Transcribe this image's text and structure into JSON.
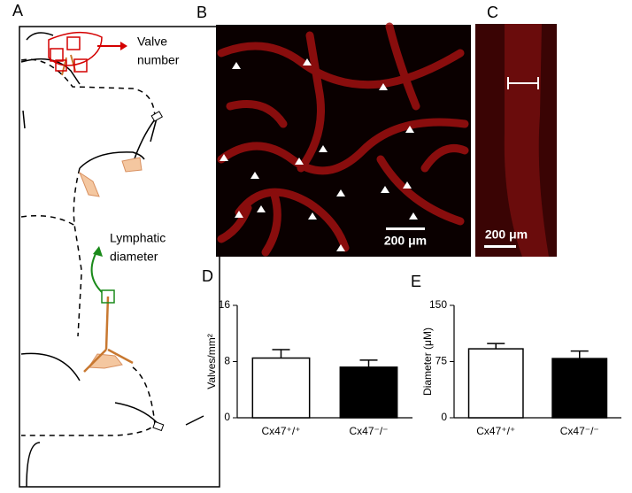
{
  "panels": {
    "a": {
      "label": "A",
      "valve_text": [
        "Valve",
        "number"
      ],
      "diameter_text": [
        "Lymphatic",
        "diameter"
      ]
    },
    "b": {
      "label": "B",
      "scale_bar": "200 μm"
    },
    "c": {
      "label": "C",
      "scale_bar": "200 μm"
    },
    "d": {
      "label": "D"
    },
    "e": {
      "label": "E"
    }
  },
  "chart_data": [
    {
      "type": "bar",
      "ylabel": "Valves/mm²",
      "categories": [
        "Cx47⁺/⁺",
        "Cx47⁻/⁻"
      ],
      "values": [
        8.5,
        7.2
      ],
      "errors": [
        1.2,
        1.0
      ],
      "colors": [
        "#ffffff",
        "#000000"
      ],
      "ylim": [
        0,
        16
      ],
      "yticks": [
        0,
        8,
        16
      ]
    },
    {
      "type": "bar",
      "ylabel": "Diameter (μM)",
      "categories": [
        "Cx47⁺/⁺",
        "Cx47⁻/⁻"
      ],
      "values": [
        92,
        79
      ],
      "errors": [
        7,
        10
      ],
      "colors": [
        "#ffffff",
        "#000000"
      ],
      "ylim": [
        0,
        150
      ],
      "yticks": [
        0,
        75,
        150
      ]
    }
  ]
}
